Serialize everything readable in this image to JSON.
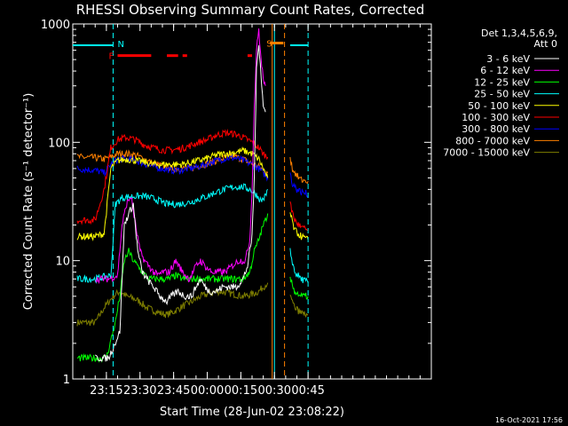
{
  "chart_data": {
    "type": "line",
    "title": "RHESSI Observing Summary Count Rates, Corrected",
    "xlabel": "Start Time (28-Jun-02 23:08:22)",
    "ylabel": "Corrected Count Rate (s⁻¹ detector⁻¹)",
    "yscale": "log",
    "ylim": [
      1,
      1000
    ],
    "xlim_minutes": [
      -60,
      100
    ],
    "x_unit": "minutes after 00:00 29-Jun-02",
    "x_ticks": [
      {
        "v": -45,
        "label": "23:15"
      },
      {
        "v": -30,
        "label": "23:30"
      },
      {
        "v": -15,
        "label": "23:45"
      },
      {
        "v": 0,
        "label": "00:00"
      },
      {
        "v": 15,
        "label": "00:15"
      },
      {
        "v": 30,
        "label": "00:30"
      },
      {
        "v": 45,
        "label": "00:45"
      }
    ],
    "y_ticks": [
      {
        "v": 1,
        "label": "1"
      },
      {
        "v": 10,
        "label": "10"
      },
      {
        "v": 100,
        "label": "100"
      },
      {
        "v": 1000,
        "label": "1000"
      }
    ],
    "legend_header": [
      "Det 1,3,4,5,6,9,",
      "Att 0"
    ],
    "timestamp": "16-Oct-2021 17:56",
    "series": [
      {
        "name": "3 - 6 keV",
        "color": "#ffffff",
        "points": [
          [
            -50,
            1.5
          ],
          [
            -44,
            1.5
          ],
          [
            -39,
            2.5
          ],
          [
            -37,
            20
          ],
          [
            -35,
            25
          ],
          [
            -33,
            30
          ],
          [
            -31,
            12
          ],
          [
            -29,
            8
          ],
          [
            -27,
            7
          ],
          [
            -24,
            6
          ],
          [
            -21,
            5
          ],
          [
            -18,
            4.5
          ],
          [
            -16,
            5
          ],
          [
            -13,
            5.5
          ],
          [
            -10,
            5
          ],
          [
            -7,
            5
          ],
          [
            -5,
            6
          ],
          [
            -3,
            7
          ],
          [
            -1,
            6
          ],
          [
            1,
            5.5
          ],
          [
            4,
            5.5
          ],
          [
            7,
            6
          ],
          [
            10,
            6
          ],
          [
            13,
            6
          ],
          [
            16,
            7
          ],
          [
            18,
            9
          ],
          [
            20,
            16
          ],
          [
            21,
            50
          ],
          [
            22,
            400
          ],
          [
            23,
            700
          ],
          [
            24,
            380
          ],
          [
            25,
            200
          ],
          [
            26,
            180
          ]
        ]
      },
      {
        "name": "6 - 12 keV",
        "color": "#ff00ff",
        "points": [
          [
            -50,
            7
          ],
          [
            -44,
            7
          ],
          [
            -40,
            7.5
          ],
          [
            -38,
            20
          ],
          [
            -36,
            30
          ],
          [
            -34,
            35
          ],
          [
            -32,
            20
          ],
          [
            -30,
            12
          ],
          [
            -28,
            10
          ],
          [
            -26,
            9
          ],
          [
            -24,
            8
          ],
          [
            -22,
            7.5
          ],
          [
            -20,
            8
          ],
          [
            -17,
            8
          ],
          [
            -14,
            10
          ],
          [
            -11,
            8
          ],
          [
            -8,
            7
          ],
          [
            -5,
            9
          ],
          [
            -3,
            10
          ],
          [
            -1,
            9
          ],
          [
            2,
            8
          ],
          [
            5,
            8
          ],
          [
            8,
            8
          ],
          [
            11,
            9
          ],
          [
            14,
            10
          ],
          [
            17,
            10
          ],
          [
            19,
            15
          ],
          [
            20,
            40
          ],
          [
            21,
            200
          ],
          [
            22,
            600
          ],
          [
            23,
            900
          ],
          [
            24,
            500
          ],
          [
            25,
            350
          ],
          [
            26,
            300
          ]
        ]
      },
      {
        "name": "12 - 25 keV",
        "color": "#00ff00",
        "points": [
          [
            -58,
            1.5
          ],
          [
            -50,
            1.5
          ],
          [
            -45,
            1.5
          ],
          [
            -41,
            3
          ],
          [
            -39,
            5
          ],
          [
            -37,
            10
          ],
          [
            -35,
            12
          ],
          [
            -33,
            10
          ],
          [
            -31,
            9
          ],
          [
            -29,
            8
          ],
          [
            -26,
            7
          ],
          [
            -23,
            7
          ],
          [
            -20,
            7
          ],
          [
            -17,
            7
          ],
          [
            -14,
            7.5
          ],
          [
            -11,
            7
          ],
          [
            -8,
            7
          ],
          [
            -5,
            7
          ],
          [
            -2,
            7
          ],
          [
            1,
            7
          ],
          [
            4,
            7
          ],
          [
            7,
            7
          ],
          [
            10,
            7
          ],
          [
            13,
            7
          ],
          [
            16,
            7
          ],
          [
            19,
            8
          ],
          [
            21,
            12
          ],
          [
            23,
            15
          ],
          [
            25,
            20
          ],
          [
            26,
            22
          ],
          [
            27,
            25
          ]
        ]
      },
      {
        "name": "25 - 50 keV",
        "color": "#00ffff",
        "points": [
          [
            -58,
            7
          ],
          [
            -50,
            7
          ],
          [
            -43,
            7.5
          ],
          [
            -41,
            30
          ],
          [
            -38,
            34
          ],
          [
            -33,
            35
          ],
          [
            -28,
            35
          ],
          [
            -23,
            33
          ],
          [
            -18,
            30
          ],
          [
            -13,
            30
          ],
          [
            -8,
            31
          ],
          [
            -4,
            33
          ],
          [
            0,
            35
          ],
          [
            4,
            38
          ],
          [
            8,
            40
          ],
          [
            12,
            42
          ],
          [
            16,
            42
          ],
          [
            19,
            40
          ],
          [
            22,
            36
          ],
          [
            24,
            32
          ],
          [
            26,
            35
          ],
          [
            27,
            40
          ]
        ]
      },
      {
        "name": "50 - 100 keV",
        "color": "#ffff00",
        "points": [
          [
            -58,
            16
          ],
          [
            -50,
            16
          ],
          [
            -46,
            17
          ],
          [
            -43,
            60
          ],
          [
            -40,
            70
          ],
          [
            -36,
            72
          ],
          [
            -32,
            70
          ],
          [
            -28,
            68
          ],
          [
            -24,
            65
          ],
          [
            -20,
            65
          ],
          [
            -16,
            65
          ],
          [
            -12,
            65
          ],
          [
            -8,
            67
          ],
          [
            -4,
            70
          ],
          [
            0,
            73
          ],
          [
            4,
            78
          ],
          [
            8,
            80
          ],
          [
            12,
            82
          ],
          [
            16,
            85
          ],
          [
            20,
            80
          ],
          [
            23,
            72
          ],
          [
            25,
            60
          ],
          [
            27,
            50
          ]
        ]
      },
      {
        "name": "100 - 300 keV",
        "color": "#ff0000",
        "points": [
          [
            -58,
            22
          ],
          [
            -50,
            22
          ],
          [
            -46,
            40
          ],
          [
            -43,
            90
          ],
          [
            -40,
            105
          ],
          [
            -36,
            110
          ],
          [
            -32,
            105
          ],
          [
            -28,
            95
          ],
          [
            -24,
            90
          ],
          [
            -20,
            86
          ],
          [
            -16,
            86
          ],
          [
            -12,
            88
          ],
          [
            -8,
            93
          ],
          [
            -4,
            100
          ],
          [
            0,
            105
          ],
          [
            4,
            115
          ],
          [
            8,
            120
          ],
          [
            12,
            118
          ],
          [
            16,
            110
          ],
          [
            20,
            100
          ],
          [
            23,
            90
          ],
          [
            25,
            80
          ],
          [
            27,
            75
          ]
        ]
      },
      {
        "name": "300 - 800 keV",
        "color": "#0000ff",
        "points": [
          [
            -58,
            60
          ],
          [
            -50,
            58
          ],
          [
            -46,
            55
          ],
          [
            -43,
            65
          ],
          [
            -40,
            72
          ],
          [
            -36,
            72
          ],
          [
            -32,
            70
          ],
          [
            -28,
            66
          ],
          [
            -24,
            62
          ],
          [
            -20,
            60
          ],
          [
            -16,
            58
          ],
          [
            -12,
            58
          ],
          [
            -8,
            60
          ],
          [
            -4,
            62
          ],
          [
            0,
            66
          ],
          [
            4,
            70
          ],
          [
            8,
            73
          ],
          [
            12,
            74
          ],
          [
            16,
            70
          ],
          [
            20,
            65
          ],
          [
            23,
            60
          ],
          [
            25,
            55
          ],
          [
            27,
            50
          ]
        ]
      },
      {
        "name": "800 - 7000 keV",
        "color": "#ff8000",
        "points": [
          [
            -58,
            75
          ],
          [
            -50,
            74
          ],
          [
            -46,
            72
          ],
          [
            -43,
            75
          ],
          [
            -40,
            80
          ],
          [
            -36,
            80
          ],
          [
            -32,
            78
          ],
          [
            -28,
            72
          ],
          [
            -24,
            66
          ],
          [
            -20,
            63
          ],
          [
            -16,
            60
          ],
          [
            -12,
            60
          ],
          [
            -8,
            60
          ],
          [
            -4,
            63
          ],
          [
            0,
            66
          ],
          [
            4,
            70
          ],
          [
            8,
            74
          ],
          [
            12,
            76
          ],
          [
            16,
            72
          ],
          [
            20,
            66
          ],
          [
            23,
            62
          ],
          [
            25,
            58
          ],
          [
            27,
            55
          ]
        ]
      },
      {
        "name": "7000 - 15000 keV",
        "color": "#808000",
        "points": [
          [
            -58,
            3
          ],
          [
            -50,
            3
          ],
          [
            -46,
            4
          ],
          [
            -42,
            5
          ],
          [
            -39,
            5.5
          ],
          [
            -36,
            5
          ],
          [
            -33,
            4.8
          ],
          [
            -30,
            4.5
          ],
          [
            -27,
            4
          ],
          [
            -24,
            3.8
          ],
          [
            -21,
            3.6
          ],
          [
            -18,
            3.5
          ],
          [
            -15,
            3.7
          ],
          [
            -12,
            4
          ],
          [
            -9,
            4.3
          ],
          [
            -6,
            4.6
          ],
          [
            -3,
            5
          ],
          [
            0,
            5.2
          ],
          [
            4,
            5.5
          ],
          [
            8,
            5.4
          ],
          [
            12,
            5.2
          ],
          [
            16,
            5
          ],
          [
            20,
            5.2
          ],
          [
            23,
            5.5
          ],
          [
            25,
            6
          ],
          [
            27,
            6.5
          ]
        ]
      }
    ],
    "post_gap_series": [
      {
        "color": "#0000ff",
        "points": [
          [
            37,
            55
          ],
          [
            38,
            45
          ],
          [
            40,
            40
          ],
          [
            42,
            38
          ],
          [
            44,
            37
          ],
          [
            45,
            36
          ]
        ]
      },
      {
        "color": "#ff8000",
        "points": [
          [
            37,
            75
          ],
          [
            38,
            60
          ],
          [
            40,
            52
          ],
          [
            42,
            48
          ],
          [
            45,
            47
          ]
        ]
      },
      {
        "color": "#ff0000",
        "points": [
          [
            37,
            30
          ],
          [
            39,
            22
          ],
          [
            42,
            19
          ],
          [
            45,
            18
          ]
        ]
      },
      {
        "color": "#ffff00",
        "points": [
          [
            37,
            25
          ],
          [
            39,
            18
          ],
          [
            42,
            16
          ],
          [
            45,
            15
          ]
        ]
      },
      {
        "color": "#00ffff",
        "points": [
          [
            37,
            12
          ],
          [
            39,
            8
          ],
          [
            42,
            7
          ],
          [
            45,
            6.5
          ]
        ]
      },
      {
        "color": "#00ff00",
        "points": [
          [
            37,
            7
          ],
          [
            39,
            5.5
          ],
          [
            42,
            5
          ],
          [
            45,
            5
          ]
        ]
      },
      {
        "color": "#808000",
        "points": [
          [
            37,
            5
          ],
          [
            39,
            4
          ],
          [
            42,
            3.6
          ],
          [
            45,
            3.5
          ]
        ]
      }
    ],
    "annotations": {
      "N_label": "N",
      "N_start": -60,
      "N_end": -42,
      "N_post_start": 37,
      "N_post_end": 45,
      "N_level": 660,
      "flag_F_label": "F",
      "flag_F_level": 540,
      "flag_F_segments": [
        [
          -40,
          -25
        ],
        [
          -18,
          -13
        ],
        [
          -11,
          -9
        ],
        [
          18,
          20
        ]
      ],
      "flag_S_label": "S",
      "flag_S_level": 690,
      "flag_S_segment": [
        28,
        34
      ],
      "vlines": [
        {
          "v": -42,
          "color": "#00ffff",
          "style": "dashed"
        },
        {
          "v": 29,
          "color": "#ff8000",
          "style": "solid"
        },
        {
          "v": 30,
          "color": "#00ffff",
          "style": "solid"
        },
        {
          "v": 34.5,
          "color": "#ff8000",
          "style": "dashed"
        },
        {
          "v": 45,
          "color": "#00ffff",
          "style": "dashed"
        }
      ]
    }
  }
}
